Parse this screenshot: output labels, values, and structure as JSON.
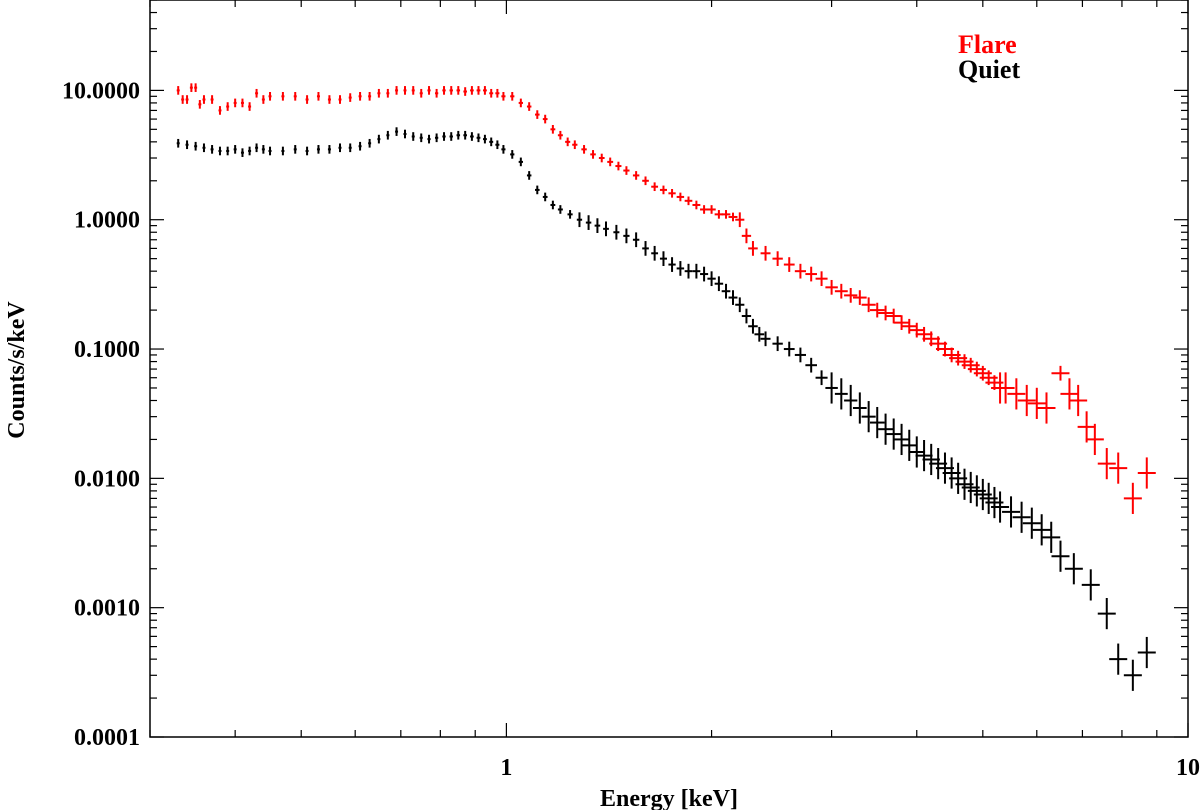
{
  "chart_data": {
    "type": "scatter",
    "title": "",
    "xlabel": "Energy [keV]",
    "ylabel": "Counts/s/keV",
    "xscale": "log",
    "yscale": "log",
    "xlim": [
      0.3,
      10
    ],
    "ylim": [
      0.0001,
      50
    ],
    "grid": false,
    "legend_position": "top-right",
    "x_ticks": [
      {
        "value": 1,
        "label": "1"
      },
      {
        "value": 10,
        "label": "10"
      }
    ],
    "y_ticks": [
      {
        "value": 0.0001,
        "label": "0.0001"
      },
      {
        "value": 0.001,
        "label": "0.0010"
      },
      {
        "value": 0.01,
        "label": "0.0100"
      },
      {
        "value": 0.1,
        "label": "0.1000"
      },
      {
        "value": 1,
        "label": "1.0000"
      },
      {
        "value": 10,
        "label": "10.0000"
      }
    ],
    "series": [
      {
        "name": "Flare",
        "color": "#ff0000",
        "points": [
          [
            0.33,
            10.0
          ],
          [
            0.335,
            8.5
          ],
          [
            0.34,
            8.5
          ],
          [
            0.345,
            10.5
          ],
          [
            0.35,
            10.5
          ],
          [
            0.355,
            7.8
          ],
          [
            0.36,
            8.5
          ],
          [
            0.37,
            8.5
          ],
          [
            0.38,
            7.0
          ],
          [
            0.39,
            7.5
          ],
          [
            0.4,
            8.0
          ],
          [
            0.41,
            8.0
          ],
          [
            0.42,
            7.5
          ],
          [
            0.43,
            9.5
          ],
          [
            0.44,
            8.5
          ],
          [
            0.45,
            9.0
          ],
          [
            0.47,
            9.0
          ],
          [
            0.49,
            9.0
          ],
          [
            0.51,
            8.5
          ],
          [
            0.53,
            9.0
          ],
          [
            0.55,
            8.5
          ],
          [
            0.57,
            8.5
          ],
          [
            0.59,
            8.8
          ],
          [
            0.61,
            9.0
          ],
          [
            0.63,
            9.0
          ],
          [
            0.65,
            9.5
          ],
          [
            0.67,
            9.5
          ],
          [
            0.69,
            10.0
          ],
          [
            0.71,
            10.0
          ],
          [
            0.73,
            10.0
          ],
          [
            0.75,
            9.5
          ],
          [
            0.77,
            10.0
          ],
          [
            0.79,
            9.5
          ],
          [
            0.81,
            10.0
          ],
          [
            0.83,
            10.0
          ],
          [
            0.85,
            10.0
          ],
          [
            0.87,
            9.8
          ],
          [
            0.89,
            10.0
          ],
          [
            0.91,
            10.0
          ],
          [
            0.93,
            10.0
          ],
          [
            0.95,
            9.5
          ],
          [
            0.97,
            9.5
          ],
          [
            0.99,
            9.0
          ],
          [
            1.02,
            9.0
          ],
          [
            1.05,
            8.0
          ],
          [
            1.08,
            7.5
          ],
          [
            1.11,
            6.5
          ],
          [
            1.14,
            6.0
          ],
          [
            1.17,
            5.0
          ],
          [
            1.2,
            4.5
          ],
          [
            1.23,
            4.0
          ],
          [
            1.26,
            3.8
          ],
          [
            1.3,
            3.5
          ],
          [
            1.34,
            3.2
          ],
          [
            1.38,
            3.0
          ],
          [
            1.42,
            2.8
          ],
          [
            1.46,
            2.6
          ],
          [
            1.5,
            2.4
          ],
          [
            1.55,
            2.2
          ],
          [
            1.6,
            2.0
          ],
          [
            1.65,
            1.8
          ],
          [
            1.7,
            1.7
          ],
          [
            1.75,
            1.6
          ],
          [
            1.8,
            1.5
          ],
          [
            1.85,
            1.4
          ],
          [
            1.9,
            1.3
          ],
          [
            1.95,
            1.2
          ],
          [
            2.0,
            1.2
          ],
          [
            2.05,
            1.1
          ],
          [
            2.1,
            1.1
          ],
          [
            2.15,
            1.05
          ],
          [
            2.2,
            1.0
          ],
          [
            2.25,
            0.75
          ],
          [
            2.3,
            0.6
          ],
          [
            2.4,
            0.55
          ],
          [
            2.5,
            0.5
          ],
          [
            2.6,
            0.45
          ],
          [
            2.7,
            0.4
          ],
          [
            2.8,
            0.38
          ],
          [
            2.9,
            0.35
          ],
          [
            3.0,
            0.3
          ],
          [
            3.1,
            0.28
          ],
          [
            3.2,
            0.26
          ],
          [
            3.3,
            0.25
          ],
          [
            3.4,
            0.22
          ],
          [
            3.5,
            0.2
          ],
          [
            3.6,
            0.19
          ],
          [
            3.7,
            0.18
          ],
          [
            3.8,
            0.16
          ],
          [
            3.9,
            0.15
          ],
          [
            4.0,
            0.14
          ],
          [
            4.1,
            0.13
          ],
          [
            4.2,
            0.12
          ],
          [
            4.3,
            0.11
          ],
          [
            4.4,
            0.1
          ],
          [
            4.5,
            0.09
          ],
          [
            4.6,
            0.085
          ],
          [
            4.7,
            0.08
          ],
          [
            4.8,
            0.075
          ],
          [
            4.9,
            0.07
          ],
          [
            5.0,
            0.065
          ],
          [
            5.1,
            0.06
          ],
          [
            5.2,
            0.055
          ],
          [
            5.3,
            0.05
          ],
          [
            5.4,
            0.05
          ],
          [
            5.6,
            0.045
          ],
          [
            5.8,
            0.04
          ],
          [
            6.0,
            0.038
          ],
          [
            6.2,
            0.035
          ],
          [
            6.5,
            0.065
          ],
          [
            6.7,
            0.045
          ],
          [
            6.9,
            0.04
          ],
          [
            7.1,
            0.025
          ],
          [
            7.3,
            0.02
          ],
          [
            7.6,
            0.013
          ],
          [
            7.9,
            0.012
          ],
          [
            8.3,
            0.007
          ],
          [
            8.7,
            0.011
          ]
        ]
      },
      {
        "name": "Quiet",
        "color": "#000000",
        "points": [
          [
            0.33,
            3.9
          ],
          [
            0.34,
            3.8
          ],
          [
            0.35,
            3.7
          ],
          [
            0.36,
            3.6
          ],
          [
            0.37,
            3.5
          ],
          [
            0.38,
            3.4
          ],
          [
            0.39,
            3.4
          ],
          [
            0.4,
            3.5
          ],
          [
            0.41,
            3.3
          ],
          [
            0.42,
            3.4
          ],
          [
            0.43,
            3.6
          ],
          [
            0.44,
            3.5
          ],
          [
            0.45,
            3.4
          ],
          [
            0.47,
            3.4
          ],
          [
            0.49,
            3.5
          ],
          [
            0.51,
            3.4
          ],
          [
            0.53,
            3.5
          ],
          [
            0.55,
            3.5
          ],
          [
            0.57,
            3.6
          ],
          [
            0.59,
            3.6
          ],
          [
            0.61,
            3.7
          ],
          [
            0.63,
            3.9
          ],
          [
            0.65,
            4.2
          ],
          [
            0.67,
            4.5
          ],
          [
            0.69,
            4.8
          ],
          [
            0.71,
            4.6
          ],
          [
            0.73,
            4.4
          ],
          [
            0.75,
            4.3
          ],
          [
            0.77,
            4.2
          ],
          [
            0.79,
            4.3
          ],
          [
            0.81,
            4.4
          ],
          [
            0.83,
            4.4
          ],
          [
            0.85,
            4.5
          ],
          [
            0.87,
            4.5
          ],
          [
            0.89,
            4.4
          ],
          [
            0.91,
            4.3
          ],
          [
            0.93,
            4.2
          ],
          [
            0.95,
            4.0
          ],
          [
            0.97,
            3.8
          ],
          [
            0.99,
            3.5
          ],
          [
            1.02,
            3.2
          ],
          [
            1.05,
            2.8
          ],
          [
            1.08,
            2.2
          ],
          [
            1.11,
            1.7
          ],
          [
            1.14,
            1.5
          ],
          [
            1.17,
            1.3
          ],
          [
            1.2,
            1.2
          ],
          [
            1.24,
            1.1
          ],
          [
            1.28,
            1.0
          ],
          [
            1.32,
            0.95
          ],
          [
            1.36,
            0.9
          ],
          [
            1.4,
            0.85
          ],
          [
            1.45,
            0.8
          ],
          [
            1.5,
            0.75
          ],
          [
            1.55,
            0.7
          ],
          [
            1.6,
            0.6
          ],
          [
            1.65,
            0.55
          ],
          [
            1.7,
            0.5
          ],
          [
            1.75,
            0.45
          ],
          [
            1.8,
            0.42
          ],
          [
            1.85,
            0.4
          ],
          [
            1.9,
            0.4
          ],
          [
            1.95,
            0.38
          ],
          [
            2.0,
            0.35
          ],
          [
            2.05,
            0.32
          ],
          [
            2.1,
            0.28
          ],
          [
            2.15,
            0.25
          ],
          [
            2.2,
            0.22
          ],
          [
            2.25,
            0.18
          ],
          [
            2.3,
            0.15
          ],
          [
            2.35,
            0.13
          ],
          [
            2.4,
            0.12
          ],
          [
            2.5,
            0.11
          ],
          [
            2.6,
            0.1
          ],
          [
            2.7,
            0.09
          ],
          [
            2.8,
            0.075
          ],
          [
            2.9,
            0.06
          ],
          [
            3.0,
            0.05
          ],
          [
            3.1,
            0.045
          ],
          [
            3.2,
            0.04
          ],
          [
            3.3,
            0.035
          ],
          [
            3.4,
            0.03
          ],
          [
            3.5,
            0.027
          ],
          [
            3.6,
            0.024
          ],
          [
            3.7,
            0.022
          ],
          [
            3.8,
            0.02
          ],
          [
            3.9,
            0.018
          ],
          [
            4.0,
            0.016
          ],
          [
            4.1,
            0.015
          ],
          [
            4.2,
            0.014
          ],
          [
            4.3,
            0.013
          ],
          [
            4.4,
            0.012
          ],
          [
            4.5,
            0.011
          ],
          [
            4.6,
            0.01
          ],
          [
            4.7,
            0.009
          ],
          [
            4.8,
            0.0085
          ],
          [
            4.9,
            0.008
          ],
          [
            5.0,
            0.0075
          ],
          [
            5.1,
            0.007
          ],
          [
            5.2,
            0.0065
          ],
          [
            5.3,
            0.006
          ],
          [
            5.5,
            0.0055
          ],
          [
            5.7,
            0.005
          ],
          [
            5.9,
            0.0045
          ],
          [
            6.1,
            0.004
          ],
          [
            6.3,
            0.0035
          ],
          [
            6.5,
            0.0025
          ],
          [
            6.8,
            0.002
          ],
          [
            7.2,
            0.0015
          ],
          [
            7.6,
            0.0009
          ],
          [
            7.9,
            0.0004
          ],
          [
            8.3,
            0.0003
          ],
          [
            8.7,
            0.00045
          ]
        ]
      }
    ]
  }
}
